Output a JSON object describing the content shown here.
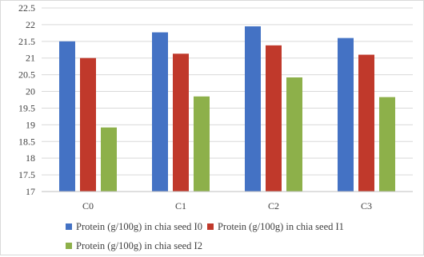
{
  "chart_data": {
    "type": "bar",
    "title": "",
    "xlabel": "",
    "ylabel": "",
    "categories": [
      "C0",
      "C1",
      "C2",
      "C3"
    ],
    "ylim": [
      17,
      22.5
    ],
    "yticks": [
      "17",
      "17.5",
      "18",
      "18.5",
      "19",
      "19.5",
      "20",
      "20.5",
      "21",
      "21.5",
      "22",
      "22.5"
    ],
    "grid": true,
    "legend_position": "bottom",
    "series": [
      {
        "name": "Protein (g/100g) in chia seed I0",
        "color": "#4472C4",
        "values": [
          21.5,
          21.77,
          21.95,
          21.6
        ]
      },
      {
        "name": "Protein (g/100g) in chia seed I1",
        "color": "#C0392B",
        "values": [
          21.0,
          21.13,
          21.38,
          21.1
        ]
      },
      {
        "name": "Protein (g/100g) in chia seed I2",
        "color": "#8DB04A",
        "values": [
          18.92,
          19.85,
          20.42,
          19.83
        ]
      }
    ]
  }
}
